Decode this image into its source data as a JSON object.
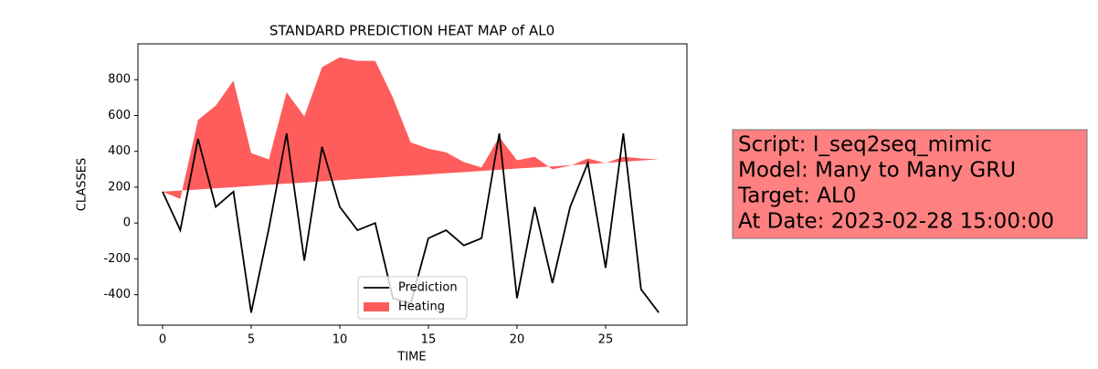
{
  "chart_data": {
    "type": "line",
    "title": "STANDARD PREDICTION HEAT MAP of AL0",
    "x_label": "TIME",
    "y_label": "CLASSES",
    "x": [
      0,
      1,
      2,
      3,
      4,
      5,
      6,
      7,
      8,
      9,
      10,
      11,
      12,
      13,
      14,
      15,
      16,
      17,
      18,
      19,
      20,
      21,
      22,
      23,
      24,
      25,
      26,
      27,
      28
    ],
    "series": [
      {
        "name": "Prediction",
        "color": "#000000",
        "kind": "line",
        "values": [
          175,
          -40,
          470,
          90,
          175,
          -500,
          -30,
          500,
          -210,
          425,
          90,
          -40,
          0,
          -420,
          -450,
          -85,
          -40,
          -125,
          -85,
          500,
          -420,
          90,
          -335,
          90,
          335,
          -250,
          500,
          -370,
          -500
        ]
      },
      {
        "name": "Heating",
        "color": "#ff3333",
        "kind": "area",
        "values": [
          175,
          135,
          575,
          655,
          795,
          390,
          355,
          730,
          595,
          870,
          925,
          905,
          905,
          700,
          450,
          415,
          395,
          340,
          310,
          480,
          350,
          370,
          300,
          320,
          360,
          335,
          370,
          360,
          355
        ],
        "lower": [
          175,
          181,
          187,
          194,
          200,
          207,
          214,
          220,
          226,
          233,
          239,
          246,
          252,
          259,
          265,
          271,
          278,
          284,
          291,
          297,
          304,
          310,
          316,
          323,
          329,
          336,
          342,
          349,
          355
        ]
      }
    ],
    "xlim": [
      -1.39,
      29.59
    ],
    "ylim": [
      -570,
      1000
    ],
    "xticks": [
      0,
      5,
      10,
      15,
      20,
      25
    ],
    "yticks": [
      -400,
      -200,
      0,
      200,
      400,
      600,
      800
    ],
    "legend": "lower center",
    "annotation": [
      "Script: I_seq2seq_mimic",
      "Model: Many to Many GRU",
      "Target: AL0",
      "At Date: 2023-02-28 15:00:00"
    ]
  }
}
